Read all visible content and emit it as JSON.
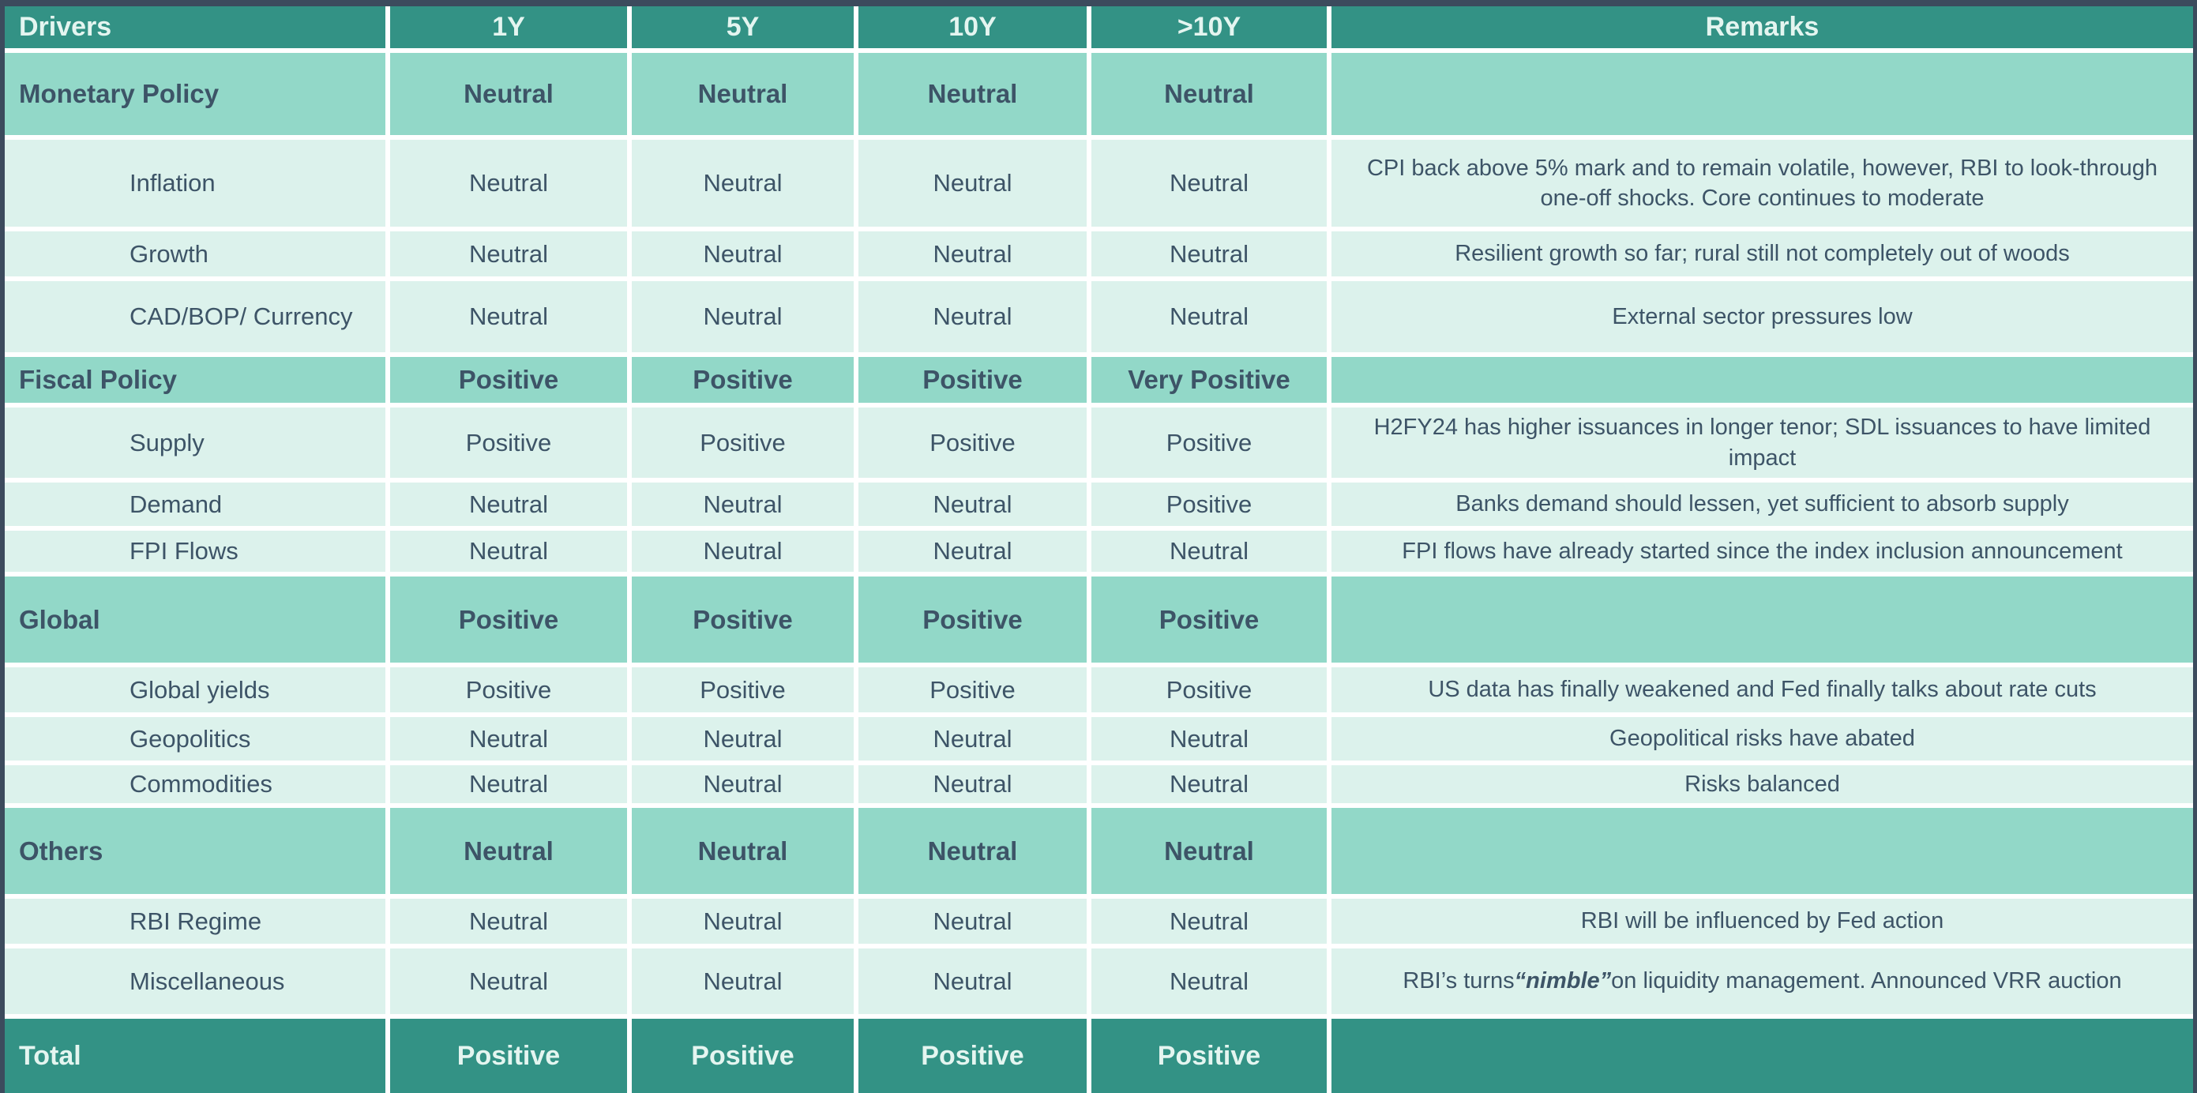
{
  "table": {
    "columns": [
      "Drivers",
      "1Y",
      "5Y",
      "10Y",
      ">10Y",
      "Remarks"
    ],
    "rows": [
      {
        "type": "section",
        "label": "Monetary Policy",
        "values": [
          "Neutral",
          "Neutral",
          "Neutral",
          "Neutral"
        ],
        "remark": ""
      },
      {
        "type": "detail",
        "label": "Inflation",
        "values": [
          "Neutral",
          "Neutral",
          "Neutral",
          "Neutral"
        ],
        "remark": "CPI back above 5% mark and to remain volatile, however, RBI to look-through one-off shocks. Core continues to moderate"
      },
      {
        "type": "detail",
        "label": "Growth",
        "values": [
          "Neutral",
          "Neutral",
          "Neutral",
          "Neutral"
        ],
        "remark": "Resilient growth so far; rural still not completely out of woods"
      },
      {
        "type": "detail",
        "label": "CAD/BOP/ Currency",
        "values": [
          "Neutral",
          "Neutral",
          "Neutral",
          "Neutral"
        ],
        "remark": "External sector pressures low"
      },
      {
        "type": "section",
        "label": "Fiscal Policy",
        "values": [
          "Positive",
          "Positive",
          "Positive",
          "Very Positive"
        ],
        "remark": ""
      },
      {
        "type": "detail",
        "label": "Supply",
        "values": [
          "Positive",
          "Positive",
          "Positive",
          "Positive"
        ],
        "remark": "H2FY24 has higher issuances in longer tenor; SDL issuances to have limited impact"
      },
      {
        "type": "detail",
        "label": "Demand",
        "values": [
          "Neutral",
          "Neutral",
          "Neutral",
          "Positive"
        ],
        "remark": "Banks demand should lessen, yet sufficient to absorb supply"
      },
      {
        "type": "detail",
        "label": "FPI Flows",
        "values": [
          "Neutral",
          "Neutral",
          "Neutral",
          "Neutral"
        ],
        "remark": "FPI flows have already started since the index inclusion announcement"
      },
      {
        "type": "section",
        "label": "Global",
        "values": [
          "Positive",
          "Positive",
          "Positive",
          "Positive"
        ],
        "remark": ""
      },
      {
        "type": "detail",
        "label": "Global yields",
        "values": [
          "Positive",
          "Positive",
          "Positive",
          "Positive"
        ],
        "remark": "US data has finally weakened and Fed finally talks about rate cuts"
      },
      {
        "type": "detail",
        "label": "Geopolitics",
        "values": [
          "Neutral",
          "Neutral",
          "Neutral",
          "Neutral"
        ],
        "remark": "Geopolitical risks have abated"
      },
      {
        "type": "detail",
        "label": "Commodities",
        "values": [
          "Neutral",
          "Neutral",
          "Neutral",
          "Neutral"
        ],
        "remark": "Risks balanced"
      },
      {
        "type": "section",
        "label": "Others",
        "values": [
          "Neutral",
          "Neutral",
          "Neutral",
          "Neutral"
        ],
        "remark": ""
      },
      {
        "type": "detail",
        "label": "RBI Regime",
        "values": [
          "Neutral",
          "Neutral",
          "Neutral",
          "Neutral"
        ],
        "remark": "RBI will be influenced by Fed action"
      },
      {
        "type": "detail",
        "label": "Miscellaneous",
        "values": [
          "Neutral",
          "Neutral",
          "Neutral",
          "Neutral"
        ],
        "remark": [
          {
            "text": "RBI’s turns "
          },
          {
            "text": "“nimble”",
            "bold": true,
            "italic": true
          },
          {
            "text": " on liquidity management. Announced VRR auction"
          }
        ]
      },
      {
        "type": "total",
        "label": "Total",
        "values": [
          "Positive",
          "Positive",
          "Positive",
          "Positive"
        ],
        "remark": ""
      }
    ],
    "colors": {
      "header_bg": "#339285",
      "section_bg": "#92D8C8",
      "detail_bg": "#DCF2EC",
      "total_bg": "#339285",
      "dark_text": "#3D5467",
      "light_text": "#E4F5F0",
      "frame_border": "#3C4B5D",
      "cell_gap": "#FFFFFF"
    }
  }
}
